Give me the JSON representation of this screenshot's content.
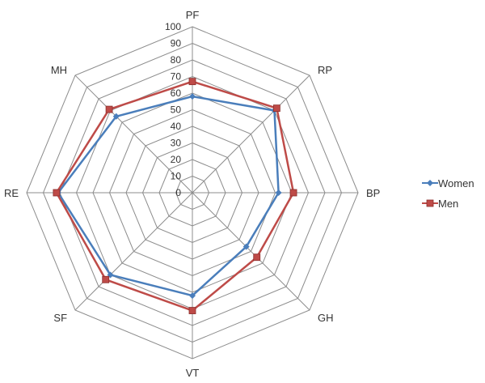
{
  "chart_data": {
    "type": "radar",
    "categories": [
      "PF",
      "RP",
      "BP",
      "GH",
      "VT",
      "SF",
      "RE",
      "MH"
    ],
    "rlim": [
      0,
      100
    ],
    "rticks": [
      0,
      10,
      20,
      30,
      40,
      50,
      60,
      70,
      80,
      90,
      100
    ],
    "grid": true,
    "legend_position": "right",
    "series": [
      {
        "name": "Women",
        "color": "#4a7ebb",
        "marker": "diamond",
        "values": [
          58,
          70,
          52,
          46,
          62,
          70,
          81,
          65
        ]
      },
      {
        "name": "Men",
        "color": "#be4b48",
        "marker": "square",
        "values": [
          67,
          72,
          61,
          55,
          71,
          74,
          82,
          71
        ]
      }
    ]
  }
}
